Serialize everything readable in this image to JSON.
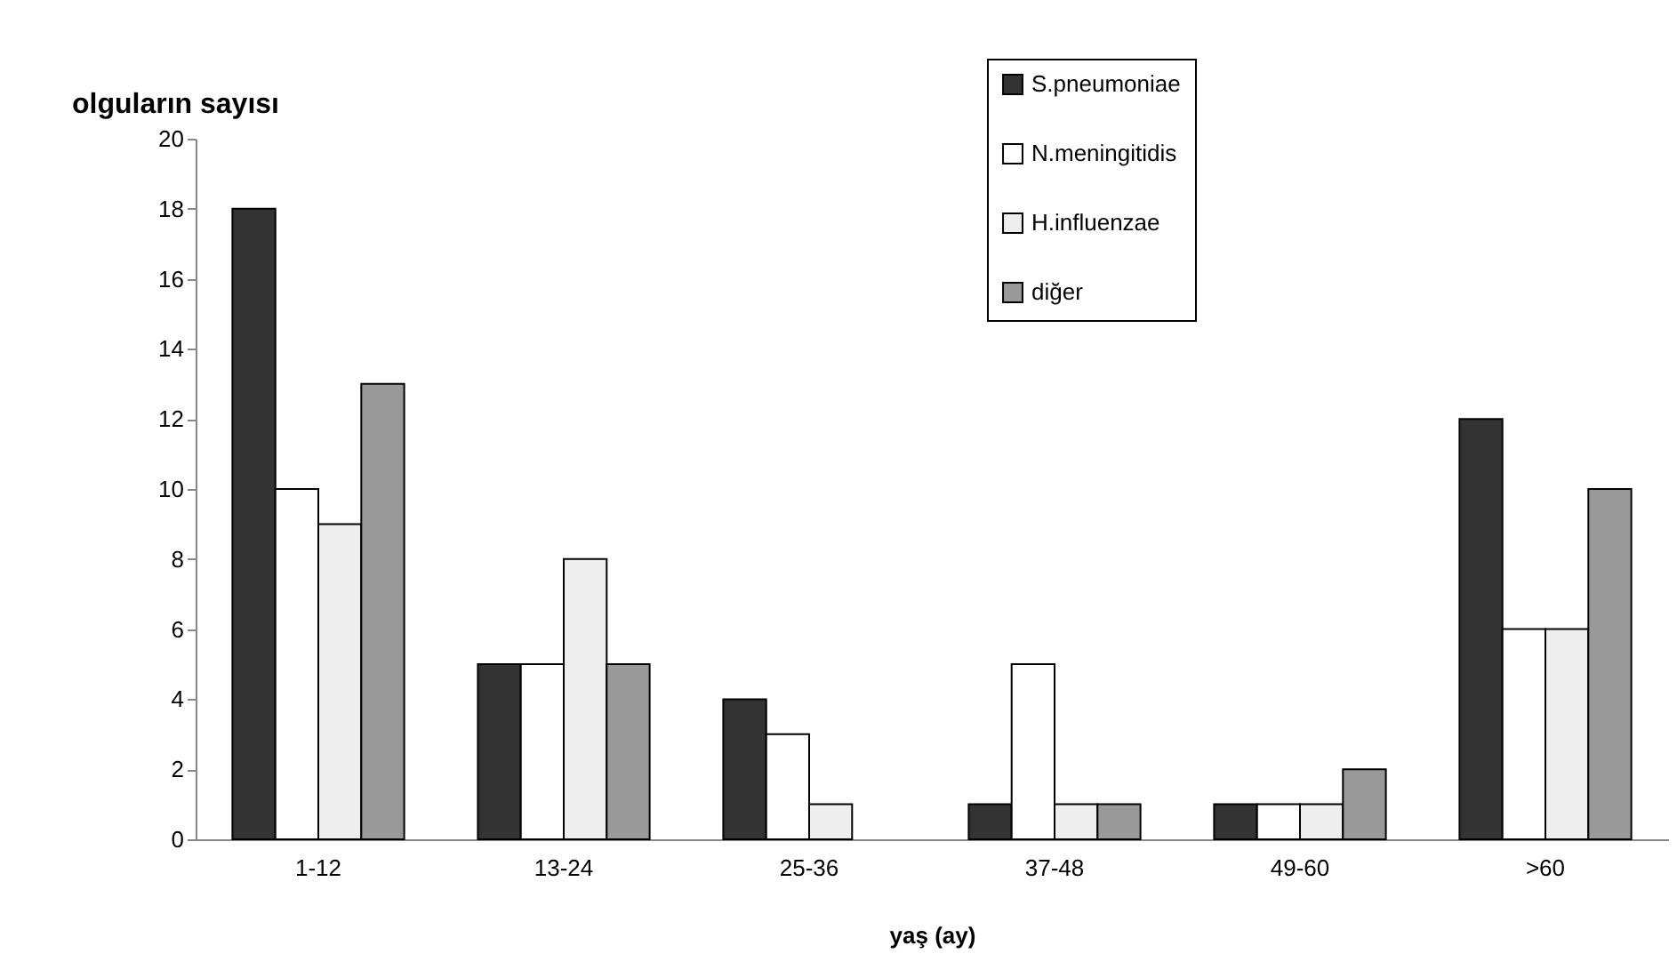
{
  "chart_data": {
    "type": "bar",
    "ylabel": "olguların sayısı",
    "xlabel": "yaş (ay)",
    "categories": [
      "1-12",
      "13-24",
      "25-36",
      "37-48",
      "49-60",
      ">60"
    ],
    "series": [
      {
        "name": "S.pneumoniae",
        "color": "#333333",
        "values": [
          18,
          5,
          4,
          1,
          1,
          12
        ]
      },
      {
        "name": "N.meningitidis",
        "color": "#ffffff",
        "values": [
          10,
          5,
          3,
          5,
          1,
          6
        ]
      },
      {
        "name": "H.influenzae",
        "color": "#eeeeee",
        "values": [
          9,
          8,
          1,
          1,
          1,
          6
        ]
      },
      {
        "name": "diğer",
        "color": "#999999",
        "values": [
          13,
          5,
          null,
          1,
          2,
          10
        ]
      }
    ],
    "ylim": [
      0,
      20
    ],
    "yticks": [
      0,
      2,
      4,
      6,
      8,
      10,
      12,
      14,
      16,
      18,
      20
    ],
    "grid": false,
    "legend": "top right"
  }
}
